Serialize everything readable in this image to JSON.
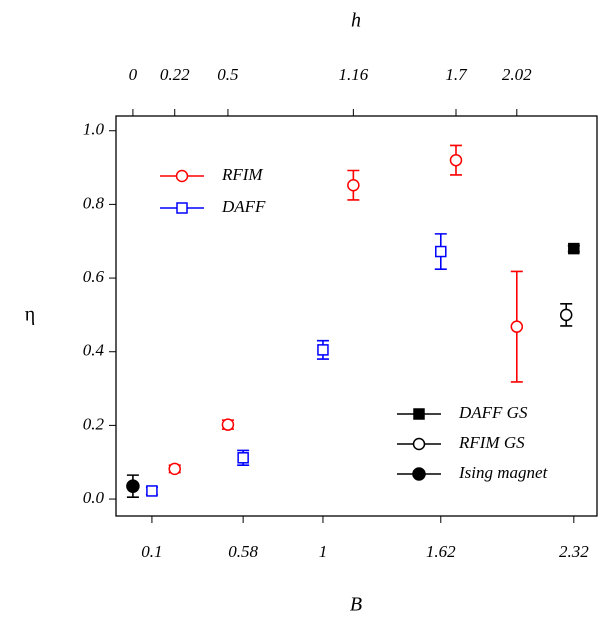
{
  "chart_data": {
    "type": "scatter",
    "xlabel": "B",
    "x2label": "h",
    "ylabel": "η",
    "xlim": [
      -0.089,
      2.442
    ],
    "xticks": [
      0.1,
      0.58,
      1,
      1.62,
      2.32
    ],
    "x2ticks": [
      0,
      0.22,
      0.5,
      1.16,
      1.7,
      2.02
    ],
    "ylim": [
      -0.046,
      1.04
    ],
    "yticks": [
      {
        "value": 0,
        "label": "0.0"
      },
      0.2,
      0.4,
      0.6,
      0.8,
      {
        "value": 1,
        "label": "1.0"
      }
    ],
    "series": [
      {
        "name": "RFIM",
        "color": "#ff0000",
        "marker": "circle",
        "filled": false,
        "x": [
          0.22,
          0.5,
          1.16,
          1.7,
          2.02
        ],
        "values": [
          0.082,
          0.202,
          0.852,
          0.92,
          0.468
        ],
        "errors": [
          0.01,
          0.012,
          0.04,
          0.04,
          0.15
        ]
      },
      {
        "name": "DAFF",
        "color": "#0000ff",
        "marker": "square",
        "filled": false,
        "x": [
          0.1,
          0.58,
          1,
          1.62
        ],
        "values": [
          0.022,
          0.112,
          0.405,
          0.672
        ],
        "errors": [
          0.01,
          0.02,
          0.025,
          0.048
        ]
      },
      {
        "name": "DAFF GS",
        "color": "#000000",
        "marker": "square",
        "filled": true,
        "x": [
          2.32
        ],
        "values": [
          0.68
        ],
        "errors": [
          0.008
        ]
      },
      {
        "name": "RFIM GS",
        "color": "#000000",
        "marker": "circle",
        "filled": false,
        "x": [
          2.28
        ],
        "values": [
          0.5
        ],
        "errors": [
          0.03
        ]
      },
      {
        "name": "Ising magnet",
        "color": "#000000",
        "marker": "circle",
        "filled": true,
        "x": [
          0
        ],
        "values": [
          0.035
        ],
        "errors": [
          0.03
        ]
      }
    ]
  }
}
